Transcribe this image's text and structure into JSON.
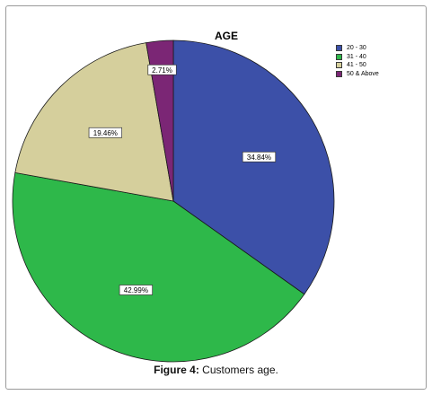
{
  "figure": {
    "caption_label": "Figure 4:",
    "caption_text": " Customers age."
  },
  "chart_data": {
    "type": "pie",
    "title": "AGE",
    "legend_position": "top-right",
    "start_angle_deg": 0,
    "direction": "clockwise",
    "categories": [
      "20 - 30",
      "31 - 40",
      "41 - 50",
      "50 & Above"
    ],
    "values": [
      34.84,
      42.99,
      19.46,
      2.71
    ],
    "value_labels": [
      "34.84%",
      "42.99%",
      "19.46%",
      "2.71%"
    ],
    "colors": [
      "#3c50a8",
      "#2eb84a",
      "#d5cf9c",
      "#7b2675"
    ]
  }
}
